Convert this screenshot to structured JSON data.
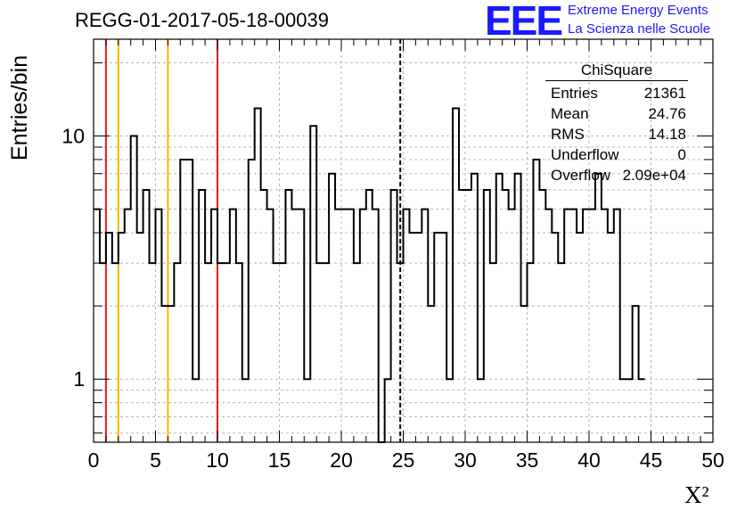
{
  "header": {
    "title": "REGG-01-2017-05-18-00039",
    "logo_text": "EEE",
    "logo_line1": "Extreme Energy Events",
    "logo_line2": "La Scienza nelle Scuole"
  },
  "stats_box": {
    "title": "ChiSquare",
    "rows": [
      {
        "key": "Entries",
        "value": "21361"
      },
      {
        "key": "Mean",
        "value": "24.76"
      },
      {
        "key": "RMS",
        "value": "14.18"
      },
      {
        "key": "Underflow",
        "value": "0"
      },
      {
        "key": "Overflow",
        "value": "2.09e+04"
      }
    ]
  },
  "chart_data": {
    "type": "histogram",
    "ylabel": "Entries/bin",
    "xlabel": "X²",
    "xlim": [
      0,
      50
    ],
    "ylim": [
      0.55,
      25
    ],
    "yscale": "log",
    "grid": true,
    "x_tick_labels": [
      "0",
      "5",
      "10",
      "15",
      "20",
      "25",
      "30",
      "35",
      "40",
      "45",
      "50"
    ],
    "y_tick_labels": [
      {
        "value": 1,
        "label": "1"
      },
      {
        "value": 10,
        "label": "10"
      }
    ],
    "bin_width": 0.5,
    "bin_contents": [
      5,
      3,
      4,
      3,
      4,
      5,
      10,
      4,
      6,
      3,
      5,
      2,
      2,
      3,
      8,
      8,
      1,
      6,
      3,
      5,
      3,
      3,
      5,
      3,
      1,
      8,
      13,
      6,
      5,
      3,
      3,
      6,
      5,
      5,
      1,
      11,
      3,
      3,
      7,
      5,
      5,
      5,
      3,
      5,
      6,
      5,
      0,
      1,
      6,
      3,
      5,
      4,
      4,
      5,
      2,
      4,
      4,
      1,
      13,
      6,
      6,
      7,
      1,
      6,
      3,
      7,
      6,
      5,
      7,
      2,
      3,
      8,
      6,
      5,
      4,
      3,
      5,
      5,
      4,
      5,
      5,
      7,
      5,
      4,
      5,
      1,
      1,
      2,
      1
    ],
    "vertical_lines": [
      {
        "x": 1.0,
        "color": "#e41a1c",
        "style": "solid"
      },
      {
        "x": 2.0,
        "color": "#f5b800",
        "style": "solid"
      },
      {
        "x": 6.0,
        "color": "#f5b800",
        "style": "solid"
      },
      {
        "x": 10.0,
        "color": "#e41a1c",
        "style": "solid"
      },
      {
        "x": 24.76,
        "color": "#000000",
        "style": "dashed"
      }
    ]
  },
  "colors": {
    "red_line": "#e41a1c",
    "yellow_line": "#f5b800",
    "grid": "#b8b8b8",
    "logo_blue": "#1a1aff"
  }
}
